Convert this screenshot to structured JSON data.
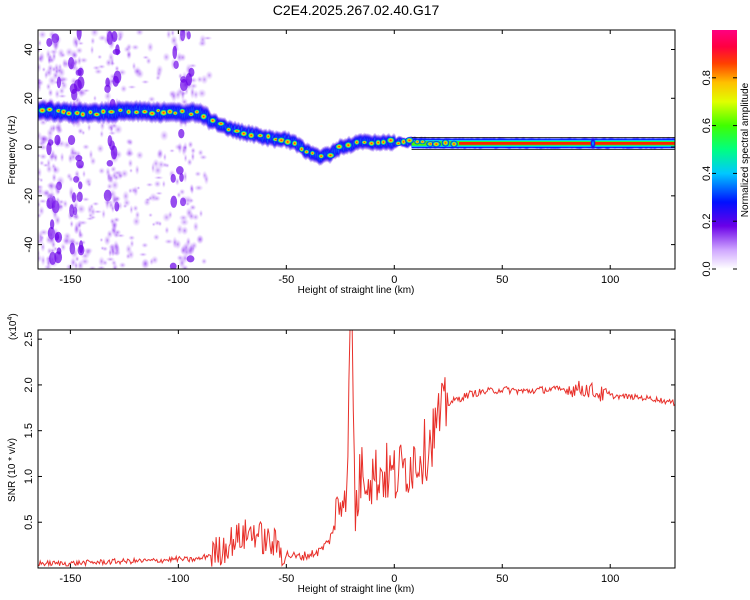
{
  "title": "C2E4.2025.267.02.40.G17",
  "colors": {
    "snr_line": "#e8302a",
    "axis": "#000000"
  },
  "chart_data": [
    {
      "type": "heatmap",
      "xlabel": "Height of straight line (km)",
      "ylabel": "Frequency (Hz)",
      "xlim": [
        -165,
        130
      ],
      "ylim": [
        -50,
        48
      ],
      "x_ticks": [
        -150,
        -100,
        -50,
        0,
        50,
        100
      ],
      "y_ticks": [
        -40,
        -20,
        0,
        20,
        40
      ],
      "colorbar": {
        "label": "Normalized spectral amplitude",
        "range": [
          0,
          1
        ],
        "ticks": [
          "0.0",
          "0.2",
          "0.4",
          "0.6",
          "0.8"
        ],
        "ticks_values": [
          0.0,
          0.2,
          0.4,
          0.6,
          0.8
        ],
        "colormap": "rainbow"
      },
      "ridge": {
        "x": [
          -165,
          -150,
          -135,
          -120,
          -105,
          -95,
          -90,
          -85,
          -80,
          -75,
          -70,
          -65,
          -60,
          -55,
          -50,
          -45,
          -40,
          -35,
          -30,
          -25,
          -20,
          -15,
          -10,
          0,
          10,
          20,
          30,
          50,
          90,
          130
        ],
        "freq": [
          15,
          14,
          14,
          15,
          14,
          14,
          14,
          11,
          9,
          7,
          6,
          5,
          4,
          3,
          3,
          1,
          -2,
          -4,
          -3,
          0,
          1,
          2,
          2,
          2,
          2,
          1.5,
          1.5,
          1.5,
          1.5,
          1.5
        ]
      }
    },
    {
      "type": "line",
      "xlabel": "Height of straight line (km)",
      "ylabel": "SNR (10 * v/v)",
      "scale_label": "(x10",
      "scale_exp": "4",
      "xlim": [
        -165,
        130
      ],
      "ylim": [
        0,
        2.6
      ],
      "x_ticks": [
        -150,
        -100,
        -50,
        0,
        50,
        100
      ],
      "y_ticks": [
        "0.5",
        "1.0",
        "1.5",
        "2.0",
        "2.5"
      ],
      "y_ticks_values": [
        0.5,
        1.0,
        1.5,
        2.0,
        2.5
      ],
      "series": [
        {
          "x": [
            -165,
            -150,
            -130,
            -110,
            -100,
            -95,
            -90,
            -85,
            -80,
            -75,
            -70,
            -65,
            -60,
            -55,
            -50,
            -45,
            -40,
            -35,
            -30,
            -25,
            -22,
            -20,
            -18,
            -15,
            -10,
            -5,
            0,
            5,
            10,
            15,
            20,
            25,
            30,
            35,
            40,
            50,
            60,
            70,
            80,
            85,
            90,
            95,
            100,
            110,
            120,
            130
          ],
          "y": [
            0.05,
            0.05,
            0.07,
            0.08,
            0.1,
            0.09,
            0.1,
            0.15,
            0.2,
            0.3,
            0.35,
            0.4,
            0.3,
            0.25,
            0.15,
            0.12,
            0.14,
            0.18,
            0.3,
            0.7,
            1.0,
            2.6,
            0.6,
            1.1,
            1.0,
            1.05,
            1.0,
            1.1,
            1.2,
            1.3,
            1.6,
            1.8,
            1.85,
            1.9,
            1.92,
            1.95,
            1.93,
            1.95,
            1.95,
            1.96,
            1.95,
            1.9,
            1.88,
            1.87,
            1.85,
            1.8
          ]
        }
      ]
    }
  ]
}
